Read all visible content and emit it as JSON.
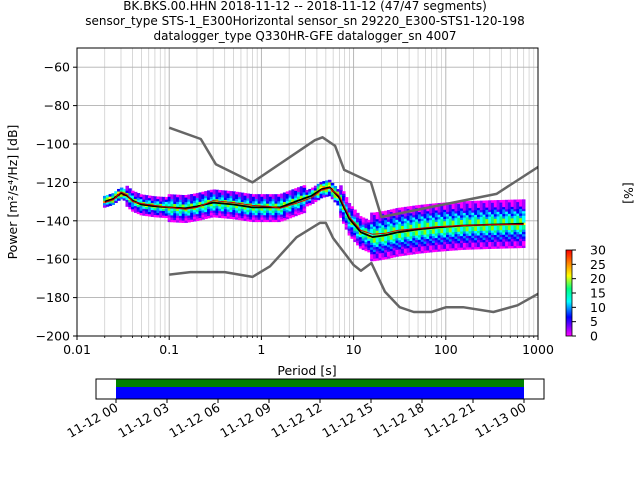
{
  "chart_data": {
    "type": "line",
    "title_lines": [
      "BK.BKS.00.HHN   2018-11-12 -- 2018-11-12  (47/47 segments)",
      "sensor_type STS-1_E300Horizontal sensor_sn 29220_E300-STS1-120-198",
      "datalogger_type Q330HR-GFE datalogger_sn 4007"
    ],
    "xlabel": "Period [s]",
    "ylabel": "Power [m²/s⁴/Hz] [dB]",
    "xscale": "log",
    "xlim": [
      0.01,
      1000
    ],
    "ylim": [
      -200,
      -50
    ],
    "x_ticks": [
      0.01,
      0.1,
      1,
      10,
      100,
      1000
    ],
    "x_tick_labels": [
      "0.01",
      "0.1",
      "1",
      "10",
      "100",
      "1000"
    ],
    "y_ticks": [
      -60,
      -80,
      -100,
      -120,
      -140,
      -160,
      -180,
      -200
    ],
    "y_tick_labels": [
      "−60",
      "−80",
      "−100",
      "−120",
      "−140",
      "−160",
      "−180",
      "−200"
    ],
    "grid": true,
    "colors": {
      "noise_model": "#666666",
      "mean_line": "#000000",
      "mode_line": "#cc0000"
    },
    "series": [
      {
        "role": "high_noise_model",
        "x": [
          0.1,
          0.22,
          0.32,
          0.8,
          3.8,
          4.6,
          6.3,
          7.9,
          15.4,
          20,
          354.8,
          1000
        ],
        "y": [
          -91.5,
          -97.4,
          -110.5,
          -120,
          -98,
          -96.5,
          -101,
          -113.5,
          -120,
          -138,
          -126,
          -112
        ]
      },
      {
        "role": "low_noise_model",
        "x": [
          0.1,
          0.17,
          0.4,
          0.8,
          1.24,
          2.4,
          4.3,
          5,
          6,
          10,
          12,
          15.6,
          21.9,
          31.6,
          45,
          70,
          101,
          154,
          328,
          600,
          1000
        ],
        "y": [
          -168,
          -166.7,
          -166.7,
          -169.2,
          -163.7,
          -148.6,
          -141.1,
          -141.1,
          -149,
          -163,
          -166,
          -162,
          -177,
          -185,
          -187.5,
          -187.5,
          -185,
          -185,
          -187.5,
          -184,
          -178
        ]
      },
      {
        "role": "mean_psd",
        "x": [
          0.02,
          0.025,
          0.03,
          0.035,
          0.04,
          0.05,
          0.07,
          0.1,
          0.15,
          0.2,
          0.3,
          0.5,
          0.8,
          1.2,
          1.6,
          2.5,
          3.5,
          4.5,
          5.5,
          7,
          9,
          12,
          16,
          22,
          30,
          50,
          80,
          150,
          300,
          700
        ],
        "y": [
          -130,
          -128.5,
          -125.5,
          -127,
          -129.5,
          -131.5,
          -132.5,
          -133,
          -133.5,
          -132.5,
          -130.5,
          -131.5,
          -133,
          -133,
          -133,
          -129.5,
          -127,
          -123.5,
          -122.5,
          -128,
          -139,
          -146,
          -148.5,
          -147.5,
          -146,
          -144.5,
          -143.5,
          -142.5,
          -142,
          -141.5
        ]
      },
      {
        "role": "mode_psd",
        "x": [
          0.02,
          0.025,
          0.03,
          0.035,
          0.04,
          0.05,
          0.07,
          0.1,
          0.15,
          0.2,
          0.3,
          0.5,
          0.8,
          1.2,
          1.6,
          2.5,
          3.5,
          4.5,
          5.5,
          7,
          9,
          12,
          16,
          22,
          30,
          50,
          80,
          150,
          300,
          700
        ],
        "y": [
          -130.5,
          -129,
          -125,
          -126.5,
          -130,
          -131,
          -132,
          -133,
          -134,
          -133,
          -129.5,
          -130.5,
          -132,
          -132.5,
          -133.5,
          -130.5,
          -128,
          -124,
          -123,
          -127,
          -138,
          -145,
          -147,
          -146.5,
          -145,
          -144,
          -143,
          -142.5,
          -142,
          -142
        ]
      }
    ],
    "colorbar": {
      "label": "[%]",
      "range": [
        0,
        30
      ],
      "ticks": [
        0,
        5,
        10,
        15,
        20,
        25,
        30
      ],
      "tick_labels": [
        "0",
        "5",
        "10",
        "15",
        "20",
        "25",
        "30"
      ]
    },
    "coverage": {
      "x_tick_labels": [
        "11-12 00",
        "11-12 03",
        "11-12 06",
        "11-12 09",
        "11-12 12",
        "11-12 15",
        "11-12 18",
        "11-12 21",
        "11-13 00"
      ],
      "colors": {
        "data": "#0000ff",
        "gaps_ok": "#008000"
      }
    }
  }
}
